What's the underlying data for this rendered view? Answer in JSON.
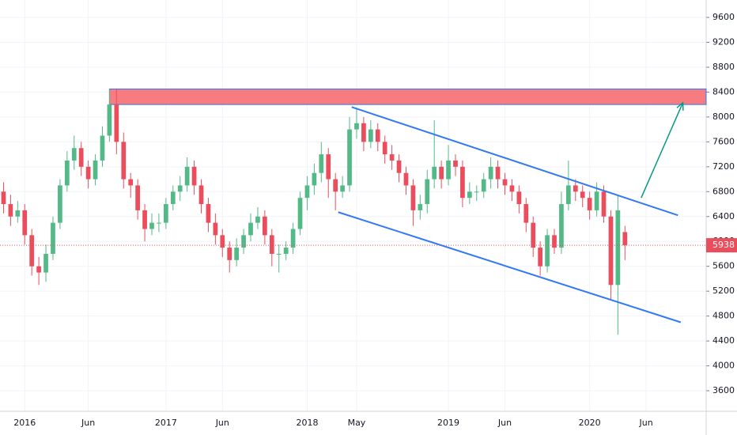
{
  "chart_data": {
    "type": "candlestick",
    "categories": [
      null,
      null,
      null,
      "2016",
      null,
      null,
      null,
      null,
      null,
      null,
      null,
      null,
      "Jun",
      null,
      null,
      null,
      null,
      null,
      null,
      null,
      null,
      null,
      null,
      "2017",
      null,
      null,
      null,
      null,
      null,
      null,
      null,
      "Jun",
      null,
      null,
      null,
      null,
      null,
      null,
      null,
      null,
      null,
      null,
      null,
      "2018",
      null,
      null,
      null,
      null,
      null,
      null,
      "May",
      null,
      null,
      null,
      null,
      null,
      null,
      null,
      null,
      null,
      null,
      null,
      null,
      "2019",
      null,
      null,
      null,
      null,
      null,
      null,
      null,
      "Jun",
      null,
      null,
      null,
      null,
      null,
      null,
      null,
      null,
      null,
      null,
      null,
      "2020",
      null,
      null,
      null,
      null,
      null,
      null,
      null,
      "Jun",
      null,
      null,
      null,
      null,
      null,
      null,
      null,
      null
    ],
    "open": [
      6800,
      6600,
      6400,
      6500,
      6100,
      5600,
      5500,
      5800,
      6300,
      6900,
      7300,
      7500,
      7200,
      7000,
      7300,
      7700,
      8200,
      7600,
      7000,
      6900,
      6500,
      6200,
      6300,
      6300,
      6600,
      6800,
      6900,
      7200,
      6900,
      6600,
      6300,
      6100,
      5900,
      5700,
      5900,
      6100,
      6300,
      6400,
      6100,
      5800,
      5800,
      5900,
      6200,
      6700,
      6900,
      7100,
      7400,
      7000,
      6800,
      6900,
      7800,
      7900,
      7600,
      7800,
      7600,
      7400,
      7300,
      7100,
      6900,
      6500,
      6600,
      7000,
      7200,
      7000,
      7300,
      7200,
      6700,
      6800,
      6800,
      7000,
      7200,
      7000,
      6900,
      6800,
      6600,
      6300,
      5900,
      5600,
      6100,
      5900,
      6600,
      6900,
      6800,
      6700,
      6500,
      6800,
      6400,
      5300,
      6150,
      null,
      null,
      null,
      null,
      null,
      null,
      null,
      null,
      null,
      null,
      null
    ],
    "high": [
      6950,
      6750,
      6650,
      6600,
      6200,
      5750,
      5950,
      6400,
      7000,
      7450,
      7700,
      7600,
      7300,
      7400,
      7850,
      8450,
      8450,
      7750,
      7100,
      7000,
      6600,
      6450,
      6450,
      6700,
      6900,
      7050,
      7350,
      7300,
      7000,
      6700,
      6450,
      6200,
      6000,
      6050,
      6200,
      6450,
      6550,
      6500,
      6200,
      5950,
      6000,
      6300,
      6800,
      7050,
      7250,
      7600,
      7500,
      7100,
      7050,
      8000,
      8150,
      8000,
      7950,
      7900,
      7700,
      7550,
      7400,
      7200,
      7000,
      6750,
      7150,
      7950,
      7300,
      7550,
      7400,
      7300,
      6950,
      6900,
      7100,
      7350,
      7300,
      7100,
      7000,
      6900,
      6700,
      6400,
      6000,
      6200,
      6200,
      6800,
      7300,
      7000,
      6900,
      6800,
      6950,
      6900,
      6500,
      6750,
      6250,
      null,
      null,
      null,
      null,
      null,
      null,
      null,
      null,
      null,
      null,
      null
    ],
    "low": [
      6450,
      6250,
      6300,
      5950,
      5450,
      5300,
      5350,
      5700,
      6200,
      6800,
      7150,
      7050,
      6850,
      6900,
      7200,
      7600,
      7400,
      6850,
      6700,
      6350,
      6000,
      6100,
      6150,
      6200,
      6500,
      6650,
      6800,
      6750,
      6450,
      6150,
      5950,
      5750,
      5500,
      5600,
      5800,
      6000,
      6200,
      5950,
      5600,
      5500,
      5700,
      5800,
      6100,
      6500,
      6750,
      6950,
      6700,
      6500,
      6700,
      6800,
      7650,
      7450,
      7500,
      7450,
      7250,
      7150,
      6950,
      6750,
      6250,
      6350,
      6450,
      6850,
      6850,
      6900,
      7050,
      6550,
      6600,
      6650,
      6700,
      6850,
      6850,
      6750,
      6650,
      6450,
      6150,
      5750,
      5450,
      5500,
      5800,
      5800,
      6500,
      6650,
      6550,
      6350,
      6400,
      6300,
      5050,
      4500,
      5700,
      null,
      null,
      null,
      null,
      null,
      null,
      null,
      null,
      null,
      null,
      null
    ],
    "close": [
      6600,
      6400,
      6500,
      6100,
      5600,
      5500,
      5800,
      6300,
      6900,
      7300,
      7500,
      7200,
      7000,
      7300,
      7700,
      8200,
      7600,
      7000,
      6900,
      6500,
      6200,
      6300,
      6300,
      6600,
      6800,
      6900,
      7200,
      6900,
      6600,
      6300,
      6100,
      5900,
      5700,
      5900,
      6100,
      6300,
      6400,
      6100,
      5800,
      5800,
      5900,
      6200,
      6700,
      6900,
      7100,
      7400,
      7000,
      6800,
      6900,
      7800,
      7900,
      7600,
      7800,
      7600,
      7400,
      7300,
      7100,
      6900,
      6500,
      6600,
      7000,
      7200,
      7000,
      7300,
      7200,
      6700,
      6800,
      6800,
      7000,
      7200,
      7000,
      6900,
      6800,
      6600,
      6300,
      5900,
      5600,
      6100,
      5900,
      6600,
      6900,
      6800,
      6700,
      6500,
      6800,
      6400,
      5300,
      6500,
      5938,
      null,
      null,
      null,
      null,
      null,
      null,
      null,
      null,
      null,
      null,
      null
    ],
    "up_color": "#53b987",
    "down_color": "#eb4d5c",
    "ylim": [
      3270,
      9880
    ],
    "yticks": [
      3600,
      4000,
      4400,
      4800,
      5200,
      5600,
      6000,
      6400,
      6800,
      7200,
      7600,
      8000,
      8400,
      8800,
      9200,
      9600
    ],
    "grid": true,
    "last_price": 5938,
    "last_price_color": "#eb4d5c",
    "zone": {
      "x": [
        15.5,
        100
      ],
      "y": [
        8200,
        8450
      ],
      "color": "#f77c80",
      "border": "#3179f5"
    },
    "trendlines": [
      {
        "x": [
          49.8,
          96.0
        ],
        "y": [
          8160,
          6420
        ],
        "color": "#3179f5"
      },
      {
        "x": [
          47.9,
          96.4
        ],
        "y": [
          6470,
          4700
        ],
        "color": "#3179f5"
      }
    ],
    "arrow": {
      "x": [
        90.8,
        96.7
      ],
      "y": [
        6700,
        8230
      ],
      "color": "#089981"
    }
  }
}
